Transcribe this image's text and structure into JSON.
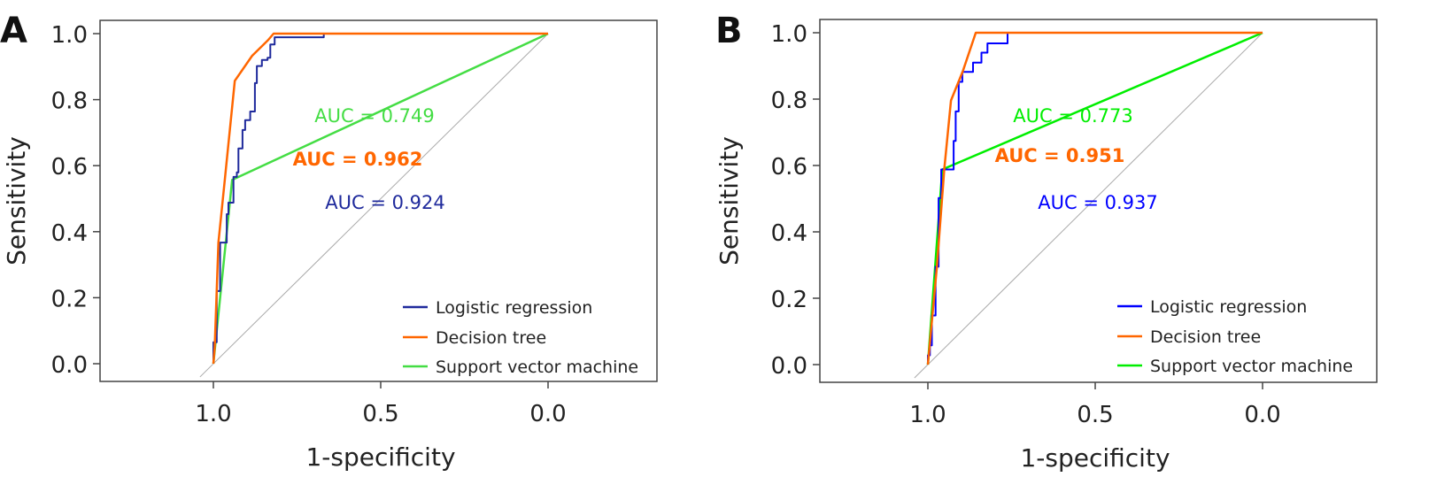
{
  "chart_data": [
    {
      "type": "line",
      "panel_label": "A",
      "xlabel": "1-specificity",
      "ylabel": "Sensitivity",
      "xlim": [
        1.0,
        0.0
      ],
      "ylim": [
        0.0,
        1.0
      ],
      "xticks": [
        "1.0",
        "0.5",
        "0.0"
      ],
      "xtick_values": [
        1.0,
        0.5,
        0.0
      ],
      "yticks": [
        "0.0",
        "0.2",
        "0.4",
        "0.6",
        "0.8",
        "1.0"
      ],
      "ytick_values": [
        0,
        0.2,
        0.4,
        0.6,
        0.8,
        1.0
      ],
      "grid": false,
      "legend_position": "bottom-right",
      "series": [
        {
          "name": "Logistic regression",
          "color": "#1f2a9c",
          "auc_label": "AUC = 0.924",
          "x": [
            1.0,
            1.0,
            0.99,
            0.99,
            0.98,
            0.98,
            0.96,
            0.96,
            0.955,
            0.955,
            0.94,
            0.94,
            0.93,
            0.93,
            0.925,
            0.925,
            0.913,
            0.913,
            0.905,
            0.905,
            0.89,
            0.89,
            0.876,
            0.876,
            0.87,
            0.87,
            0.855,
            0.855,
            0.838,
            0.838,
            0.83,
            0.83,
            0.817,
            0.817,
            0.67,
            0.67,
            0.0
          ],
          "y": [
            0.0,
            0.065,
            0.065,
            0.22,
            0.22,
            0.367,
            0.367,
            0.453,
            0.453,
            0.488,
            0.488,
            0.566,
            0.566,
            0.58,
            0.58,
            0.652,
            0.652,
            0.708,
            0.708,
            0.738,
            0.738,
            0.764,
            0.764,
            0.85,
            0.85,
            0.902,
            0.902,
            0.92,
            0.92,
            0.927,
            0.927,
            0.967,
            0.967,
            0.989,
            0.989,
            1.0,
            1.0
          ]
        },
        {
          "name": "Decision tree",
          "color": "#ff6600",
          "auc_label": "AUC = 0.962",
          "x": [
            1.0,
            0.996,
            0.985,
            0.966,
            0.936,
            0.884,
            0.837,
            0.82,
            0.0
          ],
          "y": [
            0.0,
            0.05,
            0.367,
            0.557,
            0.857,
            0.933,
            0.98,
            1.0,
            1.0
          ]
        },
        {
          "name": "Support vector machine",
          "color": "#44dd44",
          "auc_label": "AUC = 0.749",
          "x": [
            1.0,
            0.944,
            0.0
          ],
          "y": [
            0.0,
            0.557,
            1.0
          ]
        }
      ]
    },
    {
      "type": "line",
      "panel_label": "B",
      "xlabel": "1-specificity",
      "ylabel": "Sensitivity",
      "xlim": [
        1.0,
        0.0
      ],
      "ylim": [
        0.0,
        1.0
      ],
      "xticks": [
        "1.0",
        "0.5",
        "0.0"
      ],
      "xtick_values": [
        1.0,
        0.5,
        0.0
      ],
      "yticks": [
        "0.0",
        "0.2",
        "0.4",
        "0.6",
        "0.8",
        "1.0"
      ],
      "ytick_values": [
        0,
        0.2,
        0.4,
        0.6,
        0.8,
        1.0
      ],
      "grid": false,
      "legend_position": "bottom-right",
      "series": [
        {
          "name": "Logistic regression",
          "color": "#0000ff",
          "auc_label": "AUC = 0.937",
          "x": [
            1.0,
            1.0,
            0.994,
            0.994,
            0.988,
            0.988,
            0.977,
            0.977,
            0.968,
            0.968,
            0.96,
            0.96,
            0.923,
            0.923,
            0.917,
            0.917,
            0.908,
            0.908,
            0.897,
            0.897,
            0.865,
            0.865,
            0.84,
            0.84,
            0.822,
            0.822,
            0.762,
            0.762,
            0.0
          ],
          "y": [
            0.0,
            0.028,
            0.028,
            0.058,
            0.058,
            0.148,
            0.148,
            0.295,
            0.295,
            0.502,
            0.502,
            0.588,
            0.588,
            0.674,
            0.674,
            0.763,
            0.763,
            0.852,
            0.852,
            0.882,
            0.882,
            0.91,
            0.91,
            0.94,
            0.94,
            0.968,
            0.968,
            1.0,
            1.0
          ]
        },
        {
          "name": "Decision tree",
          "color": "#ff6600",
          "auc_label": "AUC = 0.951",
          "x": [
            1.0,
            0.973,
            0.951,
            0.931,
            0.895,
            0.857,
            0.0
          ],
          "y": [
            0.0,
            0.295,
            0.588,
            0.796,
            0.886,
            1.0,
            1.0
          ]
        },
        {
          "name": "Support vector machine",
          "color": "#00ee00",
          "auc_label": "AUC = 0.773",
          "x": [
            1.0,
            0.957,
            0.0
          ],
          "y": [
            0.0,
            0.588,
            1.0
          ]
        }
      ]
    }
  ]
}
